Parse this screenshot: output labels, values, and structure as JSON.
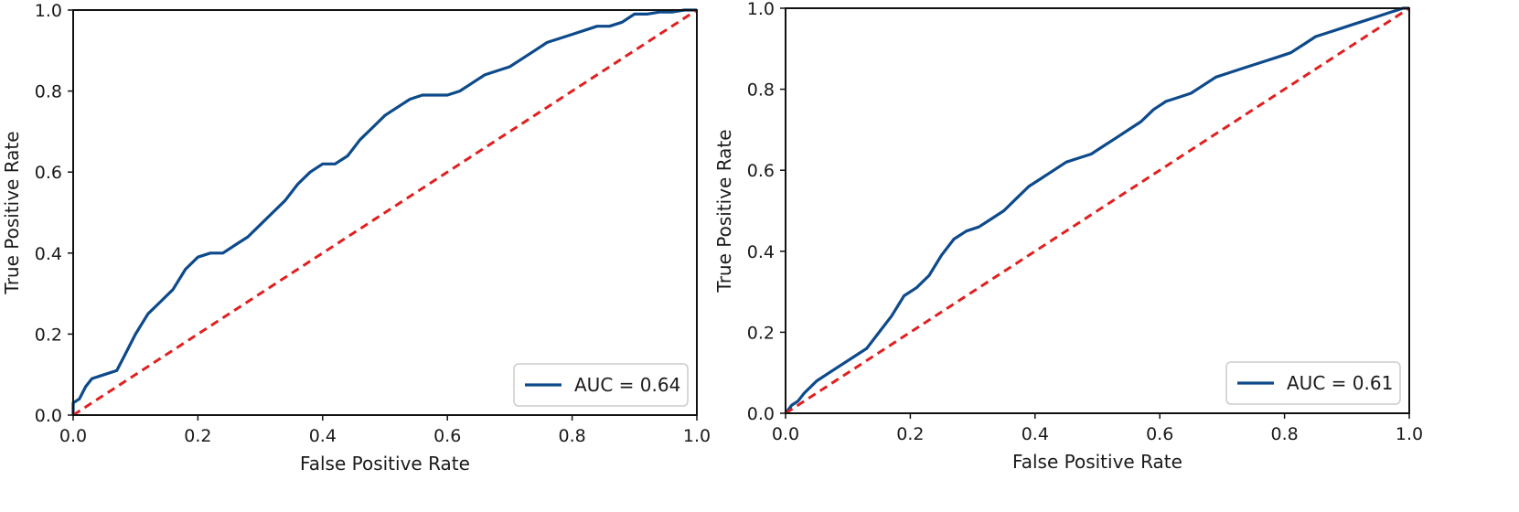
{
  "chart_data": [
    {
      "type": "line",
      "title": "",
      "xlabel": "False Positive Rate",
      "ylabel": "True Positive Rate",
      "xlim": [
        0.0,
        1.0
      ],
      "ylim": [
        0.0,
        1.0
      ],
      "grid": false,
      "legend_position": "bottom-right",
      "x_ticks": [
        "0.0",
        "0.2",
        "0.4",
        "0.6",
        "0.8",
        "1.0"
      ],
      "y_ticks": [
        "0.0",
        "0.2",
        "0.4",
        "0.6",
        "0.8",
        "1.0"
      ],
      "series": [
        {
          "name": "AUC = 0.64",
          "color": "#0d4a8b",
          "style": "solid",
          "x": [
            0.0,
            0.0,
            0.01,
            0.02,
            0.03,
            0.05,
            0.07,
            0.08,
            0.1,
            0.12,
            0.14,
            0.16,
            0.18,
            0.2,
            0.22,
            0.24,
            0.26,
            0.28,
            0.3,
            0.32,
            0.34,
            0.36,
            0.38,
            0.4,
            0.42,
            0.44,
            0.46,
            0.48,
            0.5,
            0.52,
            0.54,
            0.56,
            0.58,
            0.6,
            0.62,
            0.64,
            0.66,
            0.68,
            0.7,
            0.72,
            0.74,
            0.76,
            0.78,
            0.8,
            0.82,
            0.84,
            0.86,
            0.88,
            0.9,
            0.92,
            0.94,
            0.96,
            0.98,
            1.0
          ],
          "y": [
            0.0,
            0.03,
            0.04,
            0.07,
            0.09,
            0.1,
            0.11,
            0.14,
            0.2,
            0.25,
            0.28,
            0.31,
            0.36,
            0.39,
            0.4,
            0.4,
            0.42,
            0.44,
            0.47,
            0.5,
            0.53,
            0.57,
            0.6,
            0.62,
            0.62,
            0.64,
            0.68,
            0.71,
            0.74,
            0.76,
            0.78,
            0.79,
            0.79,
            0.79,
            0.8,
            0.82,
            0.84,
            0.85,
            0.86,
            0.88,
            0.9,
            0.92,
            0.93,
            0.94,
            0.95,
            0.96,
            0.96,
            0.97,
            0.99,
            0.99,
            0.995,
            0.995,
            1.0,
            1.0
          ]
        },
        {
          "name": "",
          "color": "#e02020",
          "style": "dashed",
          "x": [
            0.0,
            1.0
          ],
          "y": [
            0.0,
            1.0
          ]
        }
      ],
      "legend_label": "AUC = 0.64"
    },
    {
      "type": "line",
      "title": "",
      "xlabel": "False Positive Rate",
      "ylabel": "True Positive Rate",
      "xlim": [
        0.0,
        1.0
      ],
      "ylim": [
        0.0,
        1.0
      ],
      "grid": false,
      "legend_position": "bottom-right",
      "x_ticks": [
        "0.0",
        "0.2",
        "0.4",
        "0.6",
        "0.8",
        "1.0"
      ],
      "y_ticks": [
        "0.0",
        "0.2",
        "0.4",
        "0.6",
        "0.8",
        "1.0"
      ],
      "series": [
        {
          "name": "AUC = 0.61",
          "color": "#0d4a8b",
          "style": "solid",
          "x": [
            0.0,
            0.01,
            0.02,
            0.03,
            0.05,
            0.07,
            0.09,
            0.11,
            0.13,
            0.15,
            0.17,
            0.19,
            0.21,
            0.23,
            0.25,
            0.27,
            0.29,
            0.31,
            0.33,
            0.35,
            0.37,
            0.39,
            0.41,
            0.43,
            0.45,
            0.47,
            0.49,
            0.51,
            0.53,
            0.55,
            0.57,
            0.59,
            0.61,
            0.63,
            0.65,
            0.67,
            0.69,
            0.71,
            0.73,
            0.75,
            0.77,
            0.79,
            0.81,
            0.83,
            0.85,
            0.87,
            0.89,
            0.91,
            0.93,
            0.95,
            0.97,
            0.99,
            1.0
          ],
          "y": [
            0.0,
            0.02,
            0.03,
            0.05,
            0.08,
            0.1,
            0.12,
            0.14,
            0.16,
            0.2,
            0.24,
            0.29,
            0.31,
            0.34,
            0.39,
            0.43,
            0.45,
            0.46,
            0.48,
            0.5,
            0.53,
            0.56,
            0.58,
            0.6,
            0.62,
            0.63,
            0.64,
            0.66,
            0.68,
            0.7,
            0.72,
            0.75,
            0.77,
            0.78,
            0.79,
            0.81,
            0.83,
            0.84,
            0.85,
            0.86,
            0.87,
            0.88,
            0.89,
            0.91,
            0.93,
            0.94,
            0.95,
            0.96,
            0.97,
            0.98,
            0.99,
            1.0,
            1.0
          ]
        },
        {
          "name": "",
          "color": "#e02020",
          "style": "dashed",
          "x": [
            0.0,
            1.0
          ],
          "y": [
            0.0,
            1.0
          ]
        }
      ],
      "legend_label": "AUC = 0.61"
    }
  ]
}
